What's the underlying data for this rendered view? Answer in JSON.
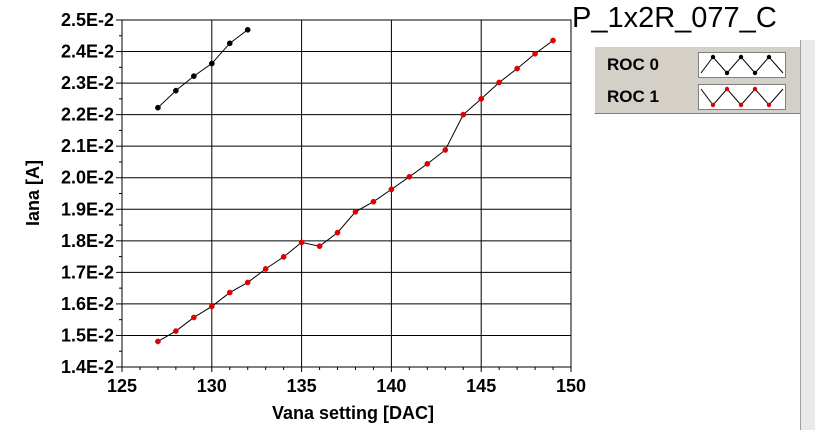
{
  "chart_data": {
    "type": "scatter",
    "title": "P_1x2R_077_C",
    "xlabel": "Vana setting [DAC]",
    "ylabel": "Iana [A]",
    "xlim": [
      125,
      150
    ],
    "ylim": [
      0.014,
      0.025
    ],
    "x_ticks": [
      125,
      130,
      135,
      140,
      145,
      150
    ],
    "x_tick_labels": [
      "125",
      "130",
      "135",
      "140",
      "145",
      "150"
    ],
    "y_ticks": [
      0.014,
      0.015,
      0.016,
      0.017,
      0.018,
      0.019,
      0.02,
      0.021,
      0.022,
      0.023,
      0.024,
      0.025
    ],
    "y_tick_labels": [
      "1.4E-2",
      "1.5E-2",
      "1.6E-2",
      "1.7E-2",
      "1.8E-2",
      "1.9E-2",
      "2.0E-2",
      "2.1E-2",
      "2.2E-2",
      "2.3E-2",
      "2.4E-2",
      "2.5E-2"
    ],
    "grid": true,
    "legend_position": "top-right",
    "series": [
      {
        "name": "ROC 0",
        "color": "#000000",
        "x": [
          127,
          128,
          129,
          130,
          131,
          132
        ],
        "y": [
          0.02222,
          0.02276,
          0.02322,
          0.02362,
          0.02426,
          0.02469
        ]
      },
      {
        "name": "ROC 1",
        "color": "#e00000",
        "x": [
          127,
          128,
          129,
          130,
          131,
          132,
          133,
          134,
          135,
          136,
          137,
          138,
          139,
          140,
          141,
          142,
          143,
          144,
          145,
          146,
          147,
          148,
          149
        ],
        "y": [
          0.01481,
          0.01514,
          0.01557,
          0.01592,
          0.01636,
          0.01668,
          0.01711,
          0.01749,
          0.01795,
          0.01783,
          0.01826,
          0.01892,
          0.01924,
          0.01963,
          0.02003,
          0.02044,
          0.02088,
          0.022,
          0.0225,
          0.02302,
          0.02346,
          0.02393,
          0.02435
        ]
      }
    ]
  }
}
